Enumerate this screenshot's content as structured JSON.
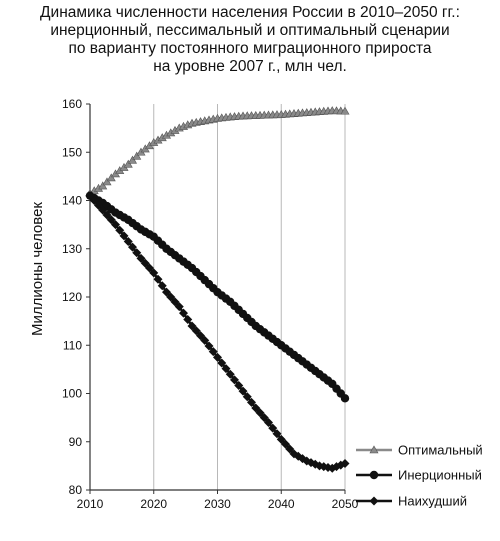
{
  "chart_data": {
    "type": "line",
    "title_lines": [
      "Динамика численности населения России в 2010–2050 гг.:",
      "инерционный, пессимальный и оптимальный сценарии",
      "по варианту постоянного миграционного прироста",
      "на уровне 2007 г., млн чел."
    ],
    "ylabel": "Миллионы человек",
    "xlabel": "",
    "xlim": [
      2010,
      2050
    ],
    "ylim": [
      80,
      160
    ],
    "xticks": [
      2010,
      2020,
      2030,
      2040,
      2050
    ],
    "yticks": [
      80,
      90,
      100,
      110,
      120,
      130,
      140,
      150,
      160
    ],
    "grid": "vertical",
    "legend_position": "right",
    "x": [
      2010,
      2012,
      2014,
      2016,
      2018,
      2020,
      2022,
      2024,
      2026,
      2028,
      2030,
      2032,
      2034,
      2036,
      2038,
      2040,
      2042,
      2044,
      2046,
      2048,
      2050
    ],
    "series": [
      {
        "name": "Оптимальный",
        "marker": "triangle",
        "values": [
          141.5,
          143.0,
          145.5,
          147.5,
          150.0,
          152.0,
          153.5,
          155.0,
          156.0,
          156.5,
          157.0,
          157.3,
          157.5,
          157.6,
          157.7,
          157.8,
          158.0,
          158.2,
          158.4,
          158.6,
          158.5
        ]
      },
      {
        "name": "Инерционный",
        "marker": "circle",
        "values": [
          141.0,
          139.5,
          137.5,
          136.0,
          134.0,
          132.5,
          130.0,
          128.0,
          126.0,
          123.5,
          121.0,
          119.0,
          116.5,
          114.0,
          112.0,
          110.0,
          108.0,
          106.0,
          104.0,
          102.0,
          99.0
        ]
      },
      {
        "name": "Наихудший",
        "marker": "diamond",
        "values": [
          141.0,
          138.0,
          135.0,
          131.5,
          128.0,
          125.0,
          121.0,
          118.0,
          114.0,
          111.0,
          107.5,
          104.0,
          100.5,
          97.0,
          94.0,
          90.5,
          87.5,
          86.0,
          85.0,
          84.5,
          85.5
        ]
      }
    ]
  }
}
